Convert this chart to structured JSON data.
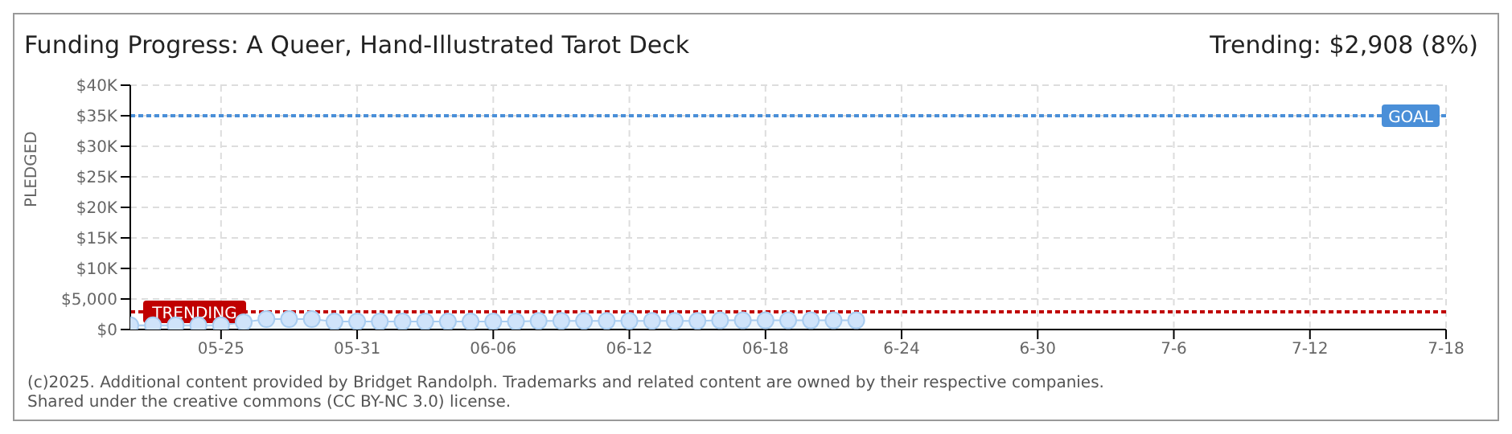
{
  "chart_data": {
    "type": "area",
    "title": "Funding Progress: A Queer, Hand-Illustrated Tarot Deck",
    "ylabel": "PLEDGED",
    "annotations": [
      "Trending: $2,908 (8%)",
      "(c)2025. Additional content provided by Bridget Randolph. Trademarks and related content are owned by their respective companies.",
      "Shared under the creative commons (CC BY-NC 3.0) license."
    ],
    "x": [
      "--05-21",
      "--05-22",
      "--05-23",
      "--05-24",
      "--05-25",
      "--05-26",
      "--05-27",
      "--05-28",
      "--05-29",
      "--05-30",
      "--05-31",
      "--06-01",
      "--06-02",
      "--06-03",
      "--06-04",
      "--06-05",
      "--06-06",
      "--06-07",
      "--06-08",
      "--06-09",
      "--06-10",
      "--06-11",
      "--06-12",
      "--06-13",
      "--06-14",
      "--06-15",
      "--06-16",
      "--06-17",
      "--06-18",
      "--06-19",
      "--06-20",
      "--06-21",
      "--06-22"
    ],
    "series": [
      {
        "color": "#a8ccf0",
        "values": [
          700,
          700,
          700,
          700,
          700,
          1200,
          1700,
          1700,
          1700,
          1300,
          1300,
          1300,
          1300,
          1300,
          1300,
          1300,
          1300,
          1300,
          1400,
          1400,
          1400,
          1400,
          1400,
          1400,
          1400,
          1400,
          1500,
          1500,
          1500,
          1500,
          1500,
          1500,
          1500
        ]
      }
    ],
    "xlim": [
      "--05-21",
      "--07-18"
    ],
    "xticks": [
      {
        "value": "--05-25",
        "label": "05-25"
      },
      {
        "value": "--05-31",
        "label": "05-31"
      },
      {
        "value": "--06-06",
        "label": "06-06"
      },
      {
        "value": "--06-12",
        "label": "06-12"
      },
      {
        "value": "--06-18",
        "label": "06-18"
      },
      {
        "value": "--06-24",
        "label": "6-24"
      },
      {
        "value": "--06-30",
        "label": "6-30"
      },
      {
        "value": "--07-06",
        "label": "7-6"
      },
      {
        "value": "--07-12",
        "label": "7-12"
      },
      {
        "value": "--07-18",
        "label": "7-18"
      }
    ],
    "ylim": [
      0,
      40000
    ],
    "yticks": [
      {
        "value": 0,
        "label": "$0"
      },
      {
        "value": 5000,
        "label": "$5,000"
      },
      {
        "value": 10000,
        "label": "$10K"
      },
      {
        "value": 15000,
        "label": "$15K"
      },
      {
        "value": 20000,
        "label": "$20K"
      },
      {
        "value": 25000,
        "label": "$25K"
      },
      {
        "value": 30000,
        "label": "$30K"
      },
      {
        "value": 35000,
        "label": "$35K"
      },
      {
        "value": 40000,
        "label": "$40K"
      }
    ],
    "ref_lines": [
      {
        "axis": "y",
        "value": 35000,
        "label": "GOAL",
        "color": "#4a8fd8",
        "line_style": "dotted"
      },
      {
        "axis": "y",
        "value": 2908,
        "label": "TRENDING",
        "color": "#c00000",
        "line_style": "dotted"
      }
    ],
    "grid": true,
    "marker": "circle",
    "legend": false
  }
}
